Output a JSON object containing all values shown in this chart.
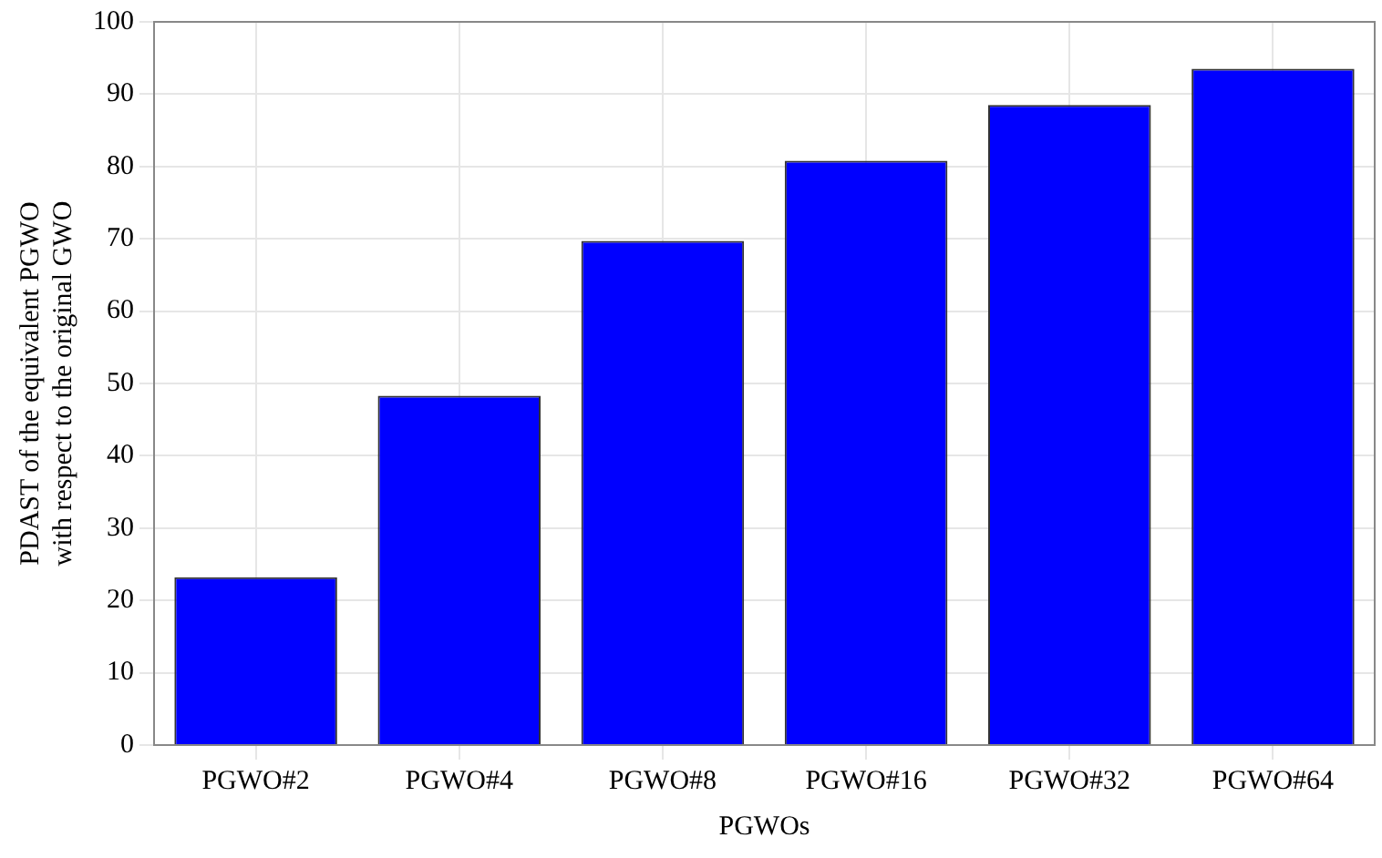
{
  "chart_data": {
    "type": "bar",
    "xlabel": "PGWOs",
    "ylabel": "PDAST of the equivalent PGWO\nwith respect to the original GWO",
    "categories": [
      "PGWO#2",
      "PGWO#4",
      "PGWO#8",
      "PGWO#16",
      "PGWO#32",
      "PGWO#64"
    ],
    "values": [
      23.2,
      48.3,
      69.7,
      80.8,
      88.5,
      93.5
    ],
    "color": "#0000ff",
    "ylim": [
      0,
      100
    ],
    "yticks": [
      0,
      10,
      20,
      30,
      40,
      50,
      60,
      70,
      80,
      90,
      100
    ],
    "grid": true
  }
}
